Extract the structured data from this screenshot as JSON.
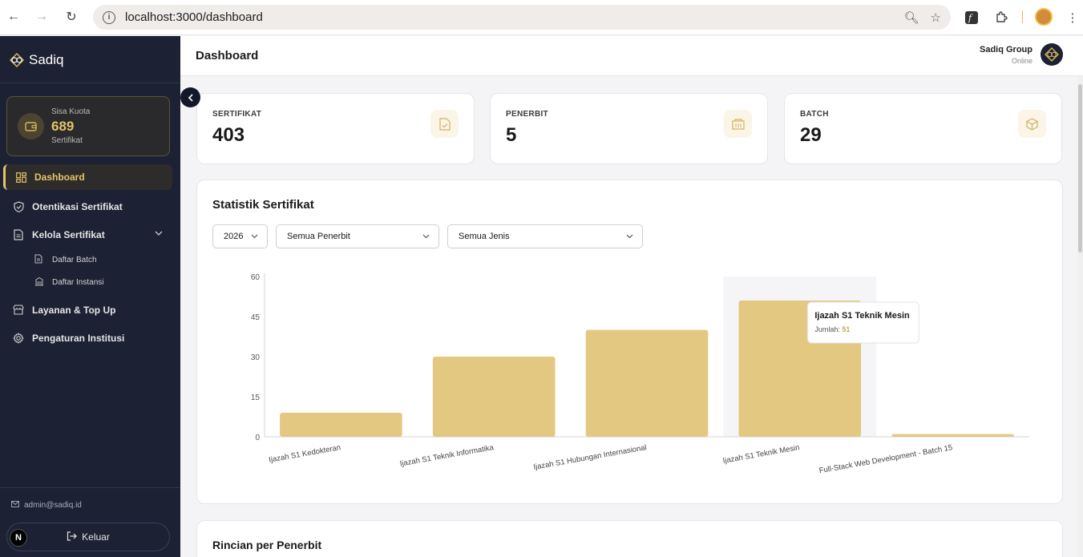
{
  "browser": {
    "url": "localhost:3000/dashboard"
  },
  "sidebar": {
    "brand": "Sadiq",
    "quota": {
      "label": "Sisa Kuota",
      "value": "689",
      "unit": "Sertifikat"
    },
    "menu": {
      "dashboard": "Dashboard",
      "otentikasi": "Otentikasi Sertifikat",
      "kelola": "Kelola Sertifikat",
      "daftar_batch": "Daftar Batch",
      "daftar_instansi": "Daftar Instansi",
      "layanan": "Layanan & Top Up",
      "pengaturan": "Pengaturan Institusi"
    },
    "user_email": "admin@sadiq.id",
    "logout_label": "Keluar"
  },
  "header": {
    "title": "Dashboard",
    "org_name": "Sadiq Group",
    "org_status": "Online"
  },
  "stats": [
    {
      "label": "SERTIFIKAT",
      "value": "403",
      "icon": "file-check-icon"
    },
    {
      "label": "PENERBIT",
      "value": "5",
      "icon": "building-icon"
    },
    {
      "label": "BATCH",
      "value": "29",
      "icon": "box-icon"
    }
  ],
  "filters": {
    "year": "2026",
    "publisher": "Semua Penerbit",
    "type": "Semua Jenis"
  },
  "chart_title": "Statistik Sertifikat",
  "chart_data": {
    "type": "bar",
    "categories": [
      "Ijazah S1 Kedokteran",
      "Ijazah S1 Teknik Informatika",
      "Ijazah S1 Hubungan Internasional",
      "Ijazah S1 Teknik Mesin",
      "Full-Stack Web Development - Batch 15"
    ],
    "values": [
      9,
      30,
      40,
      51,
      1
    ],
    "yticks": [
      0,
      15,
      30,
      45,
      60
    ],
    "ylim": [
      0,
      60
    ],
    "color": "#e3c882",
    "highlight_index": 3,
    "tooltip": {
      "title": "Ijazah S1 Teknik Mesin",
      "label": "Jumlah:",
      "value": "51"
    }
  },
  "rincian_title": "Rincian per Penerbit",
  "colors": {
    "sidebar_bg": "#1c2133",
    "accent": "#e2c56a",
    "bar": "#e3c882"
  }
}
